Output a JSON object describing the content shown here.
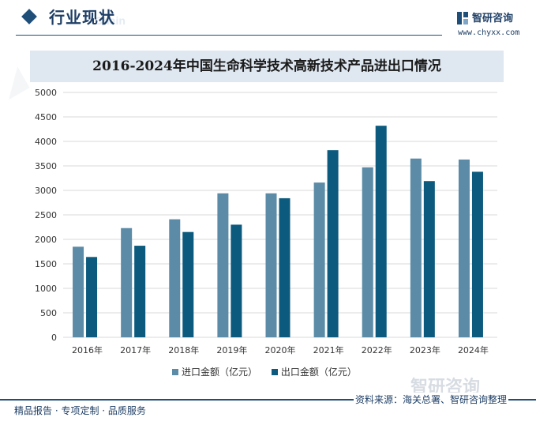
{
  "header": {
    "section_title": "行业现状",
    "ghost_text": "Chain",
    "brand_name": "智研咨询",
    "brand_url": "www.chyxx.com"
  },
  "colors": {
    "import": "#5b8ba6",
    "export": "#0c5a7d",
    "accent": "#1f4e79",
    "title_band": "#dfe7f0"
  },
  "chart_data": {
    "type": "bar",
    "title": "2016-2024年中国生命科学技术高新技术产品进出口情况",
    "categories": [
      "2016年",
      "2017年",
      "2018年",
      "2019年",
      "2020年",
      "2021年",
      "2022年",
      "2023年",
      "2024年"
    ],
    "series": [
      {
        "name": "进口金额（亿元）",
        "values": [
          1850,
          2230,
          2410,
          2940,
          2940,
          3160,
          3470,
          3650,
          3630
        ]
      },
      {
        "name": "出口金额（亿元）",
        "values": [
          1640,
          1870,
          2150,
          2300,
          2840,
          3820,
          4320,
          3190,
          3380
        ]
      }
    ],
    "ylim": [
      0,
      5000
    ],
    "yticks": [
      0,
      500,
      1000,
      1500,
      2000,
      2500,
      3000,
      3500,
      4000,
      4500,
      5000
    ],
    "xlabel": "",
    "ylabel": "",
    "grid": true,
    "legend_position": "bottom"
  },
  "footer": {
    "left_text": "精品报告 · 专项定制 · 品质服务",
    "source_text": "资料来源：海关总署、智研咨询整理",
    "ghost_brand": "智研咨询"
  }
}
